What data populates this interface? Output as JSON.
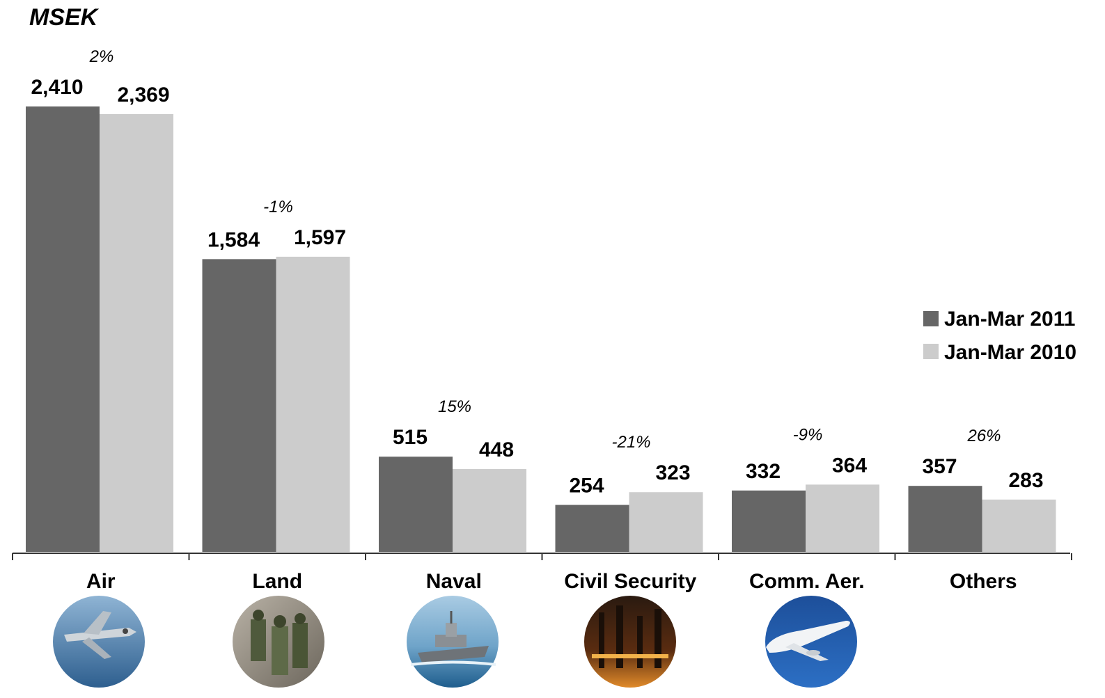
{
  "chart_data": {
    "type": "bar",
    "title": "MSEK",
    "categories": [
      "Air",
      "Land",
      "Naval",
      "Civil Security",
      "Comm. Aer.",
      "Others"
    ],
    "series": [
      {
        "name": "Jan-Mar 2011",
        "color": "#666666",
        "values": [
          2410,
          1584,
          515,
          254,
          332,
          357
        ],
        "labels": [
          "2,410",
          "1,584",
          "515",
          "254",
          "332",
          "357"
        ]
      },
      {
        "name": "Jan-Mar 2010",
        "color": "#cccccc",
        "values": [
          2369,
          1597,
          448,
          323,
          364,
          283
        ],
        "labels": [
          "2,369",
          "1,597",
          "448",
          "323",
          "364",
          "283"
        ]
      }
    ],
    "changes": [
      "2%",
      "-1%",
      "15%",
      "-21%",
      "-9%",
      "26%"
    ],
    "category_icons": [
      "fighter-jet-photo-icon",
      "soldiers-photo-icon",
      "warship-photo-icon",
      "industrial-plant-photo-icon",
      "airliner-photo-icon"
    ],
    "ylim": [
      0,
      2410
    ],
    "legend_position": "right",
    "grid": false
  }
}
